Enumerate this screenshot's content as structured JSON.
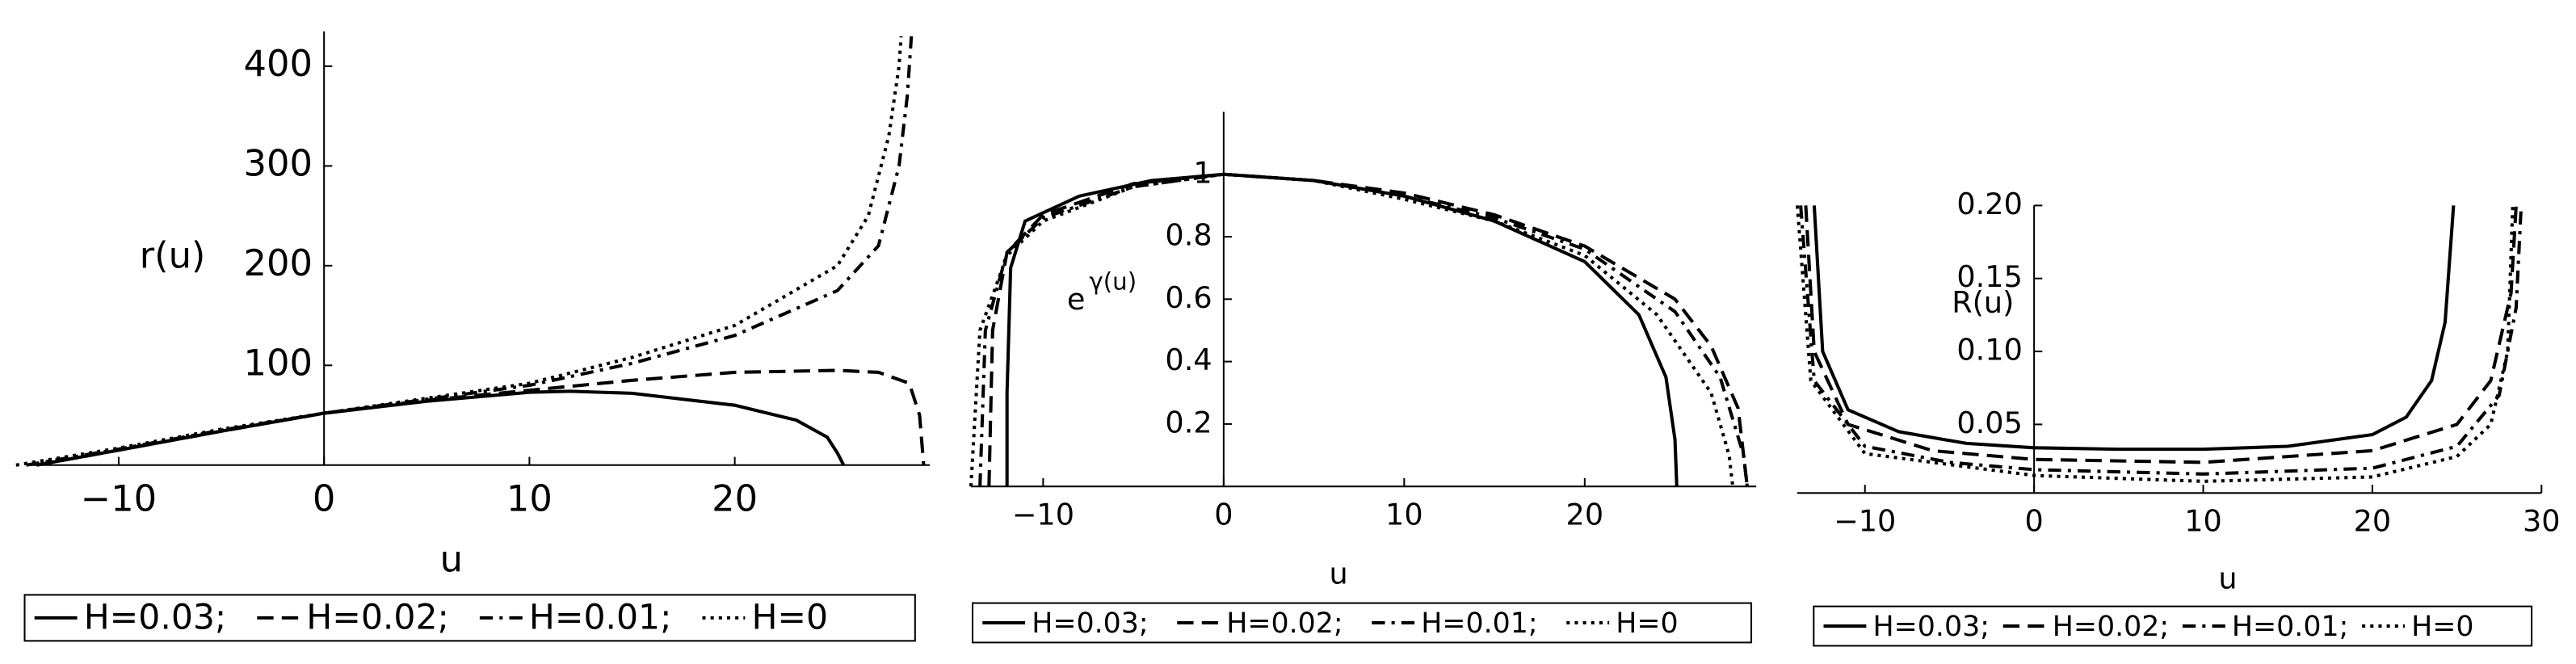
{
  "chart_data": [
    {
      "type": "line",
      "xlabel": "u",
      "ylabel": "r(u)",
      "xlim": [
        -14.5,
        29.5
      ],
      "ylim": [
        0,
        435
      ],
      "xticks": [
        {
          "value": -10,
          "label": "−10"
        },
        0,
        10,
        20
      ],
      "yticks": [
        100,
        200,
        300,
        400
      ],
      "series": [
        {
          "name": "H=0.03;",
          "color": "#000000",
          "line_style": "solid",
          "x": [
            -14,
            -10,
            -5,
            0,
            5,
            10,
            12,
            15,
            20,
            23,
            24.5,
            25,
            25.3
          ],
          "values": [
            0,
            15,
            34,
            52,
            64,
            73,
            74,
            72,
            60,
            45,
            28,
            12,
            0
          ]
        },
        {
          "name": "H=0.02;",
          "color": "#000000",
          "line_style": "dashed",
          "x": [
            -14,
            -10,
            -5,
            0,
            5,
            10,
            15,
            20,
            25,
            27,
            28.5,
            29,
            29.2
          ],
          "values": [
            0,
            15,
            34,
            52,
            65,
            75,
            85,
            93,
            95,
            93,
            82,
            50,
            0
          ]
        },
        {
          "name": "H=0.01;",
          "color": "#000000",
          "line_style": "dashdot",
          "x": [
            -14.5,
            -10,
            -5,
            0,
            5,
            10,
            15,
            20,
            25,
            27,
            28,
            28.4,
            28.6
          ],
          "values": [
            0,
            16,
            35,
            52,
            66,
            80,
            102,
            130,
            175,
            220,
            300,
            370,
            430
          ]
        },
        {
          "name": "H=0",
          "color": "#000000",
          "line_style": "dotted",
          "x": [
            -15,
            -10,
            -5,
            0,
            5,
            10,
            15,
            20,
            25,
            26.5,
            27.5,
            28,
            28.1
          ],
          "values": [
            0,
            17,
            36,
            52,
            67,
            82,
            108,
            140,
            200,
            250,
            330,
            400,
            430
          ]
        }
      ]
    },
    {
      "type": "line",
      "xlabel": "u",
      "ylabel": {
        "base": "e",
        "exponent": "γ(u)"
      },
      "xlim": [
        -14,
        29.5
      ],
      "ylim": [
        0,
        1.2
      ],
      "xticks": [
        {
          "value": -10,
          "label": "−10"
        },
        0,
        10,
        20
      ],
      "yticks": [
        0.2,
        0.4,
        0.6,
        0.8,
        1
      ],
      "series": [
        {
          "name": "H=0.03;",
          "color": "#000000",
          "line_style": "solid",
          "x": [
            -12,
            -12,
            -11.8,
            -11,
            -8,
            -4,
            0,
            5,
            10,
            15,
            20,
            23,
            24.5,
            25,
            25.1
          ],
          "values": [
            0,
            0.3,
            0.7,
            0.85,
            0.93,
            0.98,
            1,
            0.98,
            0.93,
            0.85,
            0.72,
            0.55,
            0.35,
            0.15,
            0
          ]
        },
        {
          "name": "H=0.02;",
          "color": "#000000",
          "line_style": "dashed",
          "x": [
            -13,
            -12.8,
            -12,
            -10,
            -5,
            0,
            5,
            10,
            15,
            20,
            25,
            27,
            28.5,
            29
          ],
          "values": [
            0,
            0.5,
            0.75,
            0.87,
            0.97,
            1,
            0.98,
            0.94,
            0.87,
            0.77,
            0.6,
            0.45,
            0.25,
            0
          ]
        },
        {
          "name": "H=0.01;",
          "color": "#000000",
          "line_style": "dashdot",
          "x": [
            -13.5,
            -13.2,
            -12,
            -10,
            -5,
            0,
            5,
            10,
            15,
            20,
            25,
            27.5,
            28.8,
            29
          ],
          "values": [
            0,
            0.5,
            0.75,
            0.86,
            0.96,
            1,
            0.98,
            0.93,
            0.86,
            0.76,
            0.56,
            0.35,
            0.1,
            0
          ]
        },
        {
          "name": "H=0",
          "color": "#000000",
          "line_style": "dotted",
          "x": [
            -14,
            -13.5,
            -12,
            -10,
            -5,
            0,
            5,
            10,
            15,
            20,
            24,
            27,
            28,
            28.2
          ],
          "values": [
            0,
            0.5,
            0.74,
            0.85,
            0.96,
            1,
            0.98,
            0.92,
            0.85,
            0.74,
            0.55,
            0.3,
            0.1,
            0
          ]
        }
      ]
    },
    {
      "type": "line",
      "xlabel": "u",
      "ylabel": "R(u)",
      "xlim": [
        -14,
        30
      ],
      "ylim": [
        0.003,
        0.2
      ],
      "xticks": [
        {
          "value": -10,
          "label": "−10"
        },
        0,
        10,
        20,
        30
      ],
      "yticks": [
        0.05,
        {
          "value": 0.1,
          "label": "0.10"
        },
        0.15,
        {
          "value": 0.2,
          "label": "0.20"
        }
      ],
      "series": [
        {
          "name": "H=0.03;",
          "color": "#000000",
          "line_style": "solid",
          "x": [
            -13,
            -12.5,
            -11,
            -8,
            -4,
            0,
            5,
            10,
            15,
            20,
            22,
            23.5,
            24.3,
            24.8
          ],
          "values": [
            0.2,
            0.1,
            0.06,
            0.045,
            0.037,
            0.034,
            0.033,
            0.033,
            0.035,
            0.043,
            0.055,
            0.08,
            0.12,
            0.2
          ]
        },
        {
          "name": "H=0.02;",
          "color": "#000000",
          "line_style": "dashed",
          "x": [
            -13.5,
            -13,
            -11,
            -6,
            0,
            10,
            20,
            25,
            27,
            28.2,
            28.5
          ],
          "values": [
            0.2,
            0.1,
            0.05,
            0.032,
            0.026,
            0.024,
            0.032,
            0.05,
            0.08,
            0.14,
            0.2
          ]
        },
        {
          "name": "H=0.01;",
          "color": "#000000",
          "line_style": "dashdot",
          "x": [
            -13.8,
            -13,
            -10,
            -5,
            0,
            10,
            20,
            25,
            27.5,
            28.5,
            28.8
          ],
          "values": [
            0.2,
            0.08,
            0.035,
            0.024,
            0.019,
            0.016,
            0.02,
            0.035,
            0.07,
            0.13,
            0.2
          ]
        },
        {
          "name": "H=0",
          "color": "#000000",
          "line_style": "dotted",
          "x": [
            -14,
            -13.2,
            -10,
            0,
            10,
            20,
            25,
            27,
            28,
            28.3
          ],
          "values": [
            0.2,
            0.08,
            0.03,
            0.015,
            0.011,
            0.014,
            0.028,
            0.05,
            0.1,
            0.2
          ]
        }
      ]
    }
  ]
}
